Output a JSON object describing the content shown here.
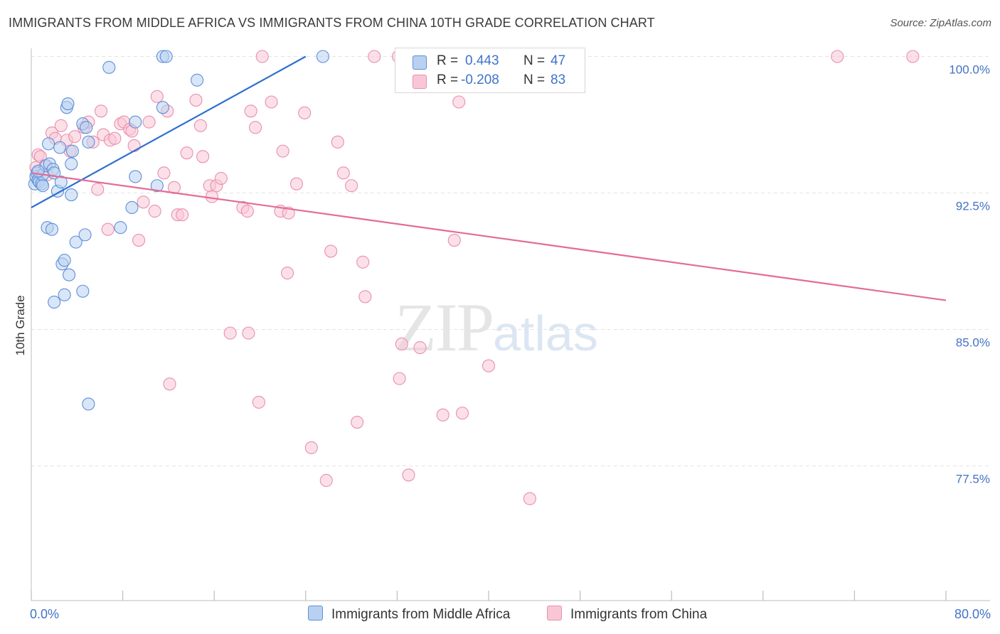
{
  "title": "IMMIGRANTS FROM MIDDLE AFRICA VS IMMIGRANTS FROM CHINA 10TH GRADE CORRELATION CHART",
  "source": "Source: ZipAtlas.com",
  "watermark": {
    "zip": "ZIP",
    "atlas": "atlas"
  },
  "legend": {
    "series1": {
      "r_label": "R =",
      "r_value": "0.443",
      "n_label": "N =",
      "n_value": "47"
    },
    "series2": {
      "r_label": "R =",
      "r_value": "-0.208",
      "n_label": "N =",
      "n_value": "83"
    }
  },
  "colors": {
    "blue_fill": "#b9d1f1",
    "blue_stroke": "#5e8fd8",
    "blue_line": "#2d6fd0",
    "pink_fill": "#f9c6d6",
    "pink_stroke": "#e88fae",
    "pink_line": "#e36b99",
    "tick_label": "#4472c4",
    "grid": "#e3e3e3"
  },
  "chart_data": {
    "type": "scatter",
    "title": "IMMIGRANTS FROM MIDDLE AFRICA VS IMMIGRANTS FROM CHINA 10TH GRADE CORRELATION CHART",
    "xlabel": "",
    "ylabel": "10th Grade",
    "xlim": [
      0,
      80
    ],
    "ylim": [
      71.0,
      101.0
    ],
    "x_tick_labels": [
      "0.0%",
      "80.0%"
    ],
    "y_ticks": [
      {
        "value": 77.5,
        "label": "77.5%"
      },
      {
        "value": 85.0,
        "label": "85.0%"
      },
      {
        "value": 92.5,
        "label": "92.5%"
      },
      {
        "value": 100.0,
        "label": "100.0%"
      }
    ],
    "series": [
      {
        "name": "Immigrants from Middle Africa",
        "color": "blue",
        "trend": {
          "x": [
            0.0,
            24.0
          ],
          "y": [
            91.7,
            100.0
          ]
        },
        "points": [
          [
            0.3,
            93.0
          ],
          [
            0.4,
            93.4
          ],
          [
            0.5,
            93.6
          ],
          [
            0.6,
            93.2
          ],
          [
            0.7,
            93.1
          ],
          [
            0.9,
            93.0
          ],
          [
            1.0,
            93.5
          ],
          [
            1.3,
            94.0
          ],
          [
            1.5,
            95.2
          ],
          [
            1.6,
            94.1
          ],
          [
            1.9,
            93.8
          ],
          [
            2.0,
            93.6
          ],
          [
            2.3,
            92.6
          ],
          [
            2.5,
            95.0
          ],
          [
            2.6,
            93.1
          ],
          [
            3.1,
            97.2
          ],
          [
            3.2,
            97.4
          ],
          [
            3.5,
            92.4
          ],
          [
            3.6,
            94.8
          ],
          [
            3.5,
            94.1
          ],
          [
            4.5,
            96.3
          ],
          [
            4.8,
            96.1
          ],
          [
            5.0,
            95.3
          ],
          [
            1.4,
            90.6
          ],
          [
            1.8,
            90.5
          ],
          [
            3.9,
            89.8
          ],
          [
            4.7,
            90.2
          ],
          [
            2.7,
            88.6
          ],
          [
            2.9,
            88.8
          ],
          [
            3.3,
            88.0
          ],
          [
            2.0,
            86.5
          ],
          [
            2.9,
            86.9
          ],
          [
            4.5,
            87.1
          ],
          [
            5.0,
            80.9
          ],
          [
            6.8,
            99.4
          ],
          [
            11.5,
            100.0
          ],
          [
            11.8,
            100.0
          ],
          [
            14.5,
            98.7
          ],
          [
            11.5,
            97.2
          ],
          [
            9.1,
            96.4
          ],
          [
            9.1,
            93.4
          ],
          [
            8.8,
            91.7
          ],
          [
            7.8,
            90.6
          ],
          [
            11.0,
            92.9
          ],
          [
            25.5,
            100.0
          ],
          [
            1.0,
            92.9
          ],
          [
            0.6,
            93.7
          ]
        ]
      },
      {
        "name": "Immigrants from China",
        "color": "pink",
        "trend": {
          "x": [
            0.0,
            80.0
          ],
          "y": [
            93.6,
            86.6
          ]
        },
        "points": [
          [
            0.4,
            93.9
          ],
          [
            0.6,
            94.6
          ],
          [
            0.8,
            94.5
          ],
          [
            1.2,
            94.0
          ],
          [
            1.4,
            93.5
          ],
          [
            1.8,
            95.8
          ],
          [
            2.1,
            95.5
          ],
          [
            2.6,
            96.2
          ],
          [
            3.1,
            95.4
          ],
          [
            3.4,
            94.8
          ],
          [
            3.8,
            95.6
          ],
          [
            4.6,
            96.1
          ],
          [
            5.0,
            96.4
          ],
          [
            5.4,
            95.3
          ],
          [
            5.8,
            92.7
          ],
          [
            6.1,
            97.0
          ],
          [
            6.3,
            95.7
          ],
          [
            6.7,
            90.5
          ],
          [
            6.9,
            95.4
          ],
          [
            7.3,
            95.5
          ],
          [
            7.8,
            96.3
          ],
          [
            8.1,
            96.4
          ],
          [
            8.6,
            96.0
          ],
          [
            8.8,
            95.9
          ],
          [
            9.0,
            95.1
          ],
          [
            9.4,
            89.9
          ],
          [
            9.8,
            92.0
          ],
          [
            10.3,
            96.4
          ],
          [
            10.8,
            91.5
          ],
          [
            11.0,
            97.8
          ],
          [
            11.6,
            93.6
          ],
          [
            11.9,
            97.0
          ],
          [
            12.5,
            92.8
          ],
          [
            12.8,
            91.3
          ],
          [
            13.2,
            91.3
          ],
          [
            13.6,
            94.7
          ],
          [
            14.4,
            97.6
          ],
          [
            14.8,
            96.2
          ],
          [
            15.0,
            94.5
          ],
          [
            15.6,
            92.9
          ],
          [
            15.8,
            92.3
          ],
          [
            16.2,
            92.9
          ],
          [
            16.6,
            93.3
          ],
          [
            17.4,
            84.8
          ],
          [
            18.5,
            91.7
          ],
          [
            18.9,
            91.5
          ],
          [
            19.0,
            84.8
          ],
          [
            19.2,
            97.0
          ],
          [
            19.6,
            96.1
          ],
          [
            21.0,
            97.5
          ],
          [
            21.8,
            91.5
          ],
          [
            22.0,
            94.8
          ],
          [
            22.4,
            88.1
          ],
          [
            22.5,
            91.4
          ],
          [
            23.2,
            93.0
          ],
          [
            23.9,
            96.9
          ],
          [
            24.5,
            78.5
          ],
          [
            25.8,
            76.7
          ],
          [
            26.2,
            89.3
          ],
          [
            26.8,
            95.3
          ],
          [
            27.3,
            93.6
          ],
          [
            28.0,
            92.9
          ],
          [
            28.5,
            79.9
          ],
          [
            29.0,
            88.7
          ],
          [
            29.2,
            86.8
          ],
          [
            30.0,
            100.0
          ],
          [
            32.2,
            82.3
          ],
          [
            32.4,
            84.2
          ],
          [
            33.0,
            77.0
          ],
          [
            34.0,
            84.0
          ],
          [
            36.0,
            80.3
          ],
          [
            37.0,
            89.9
          ],
          [
            37.4,
            97.5
          ],
          [
            37.7,
            80.4
          ],
          [
            40.0,
            83.0
          ],
          [
            43.6,
            75.7
          ],
          [
            12.1,
            82.0
          ],
          [
            19.9,
            81.0
          ],
          [
            20.2,
            100.0
          ],
          [
            32.1,
            100.0
          ],
          [
            35.0,
            100.0
          ],
          [
            70.5,
            100.0
          ],
          [
            77.1,
            100.0
          ]
        ]
      }
    ]
  },
  "bottom_legend": [
    "Immigrants from Middle Africa",
    "Immigrants from China"
  ]
}
